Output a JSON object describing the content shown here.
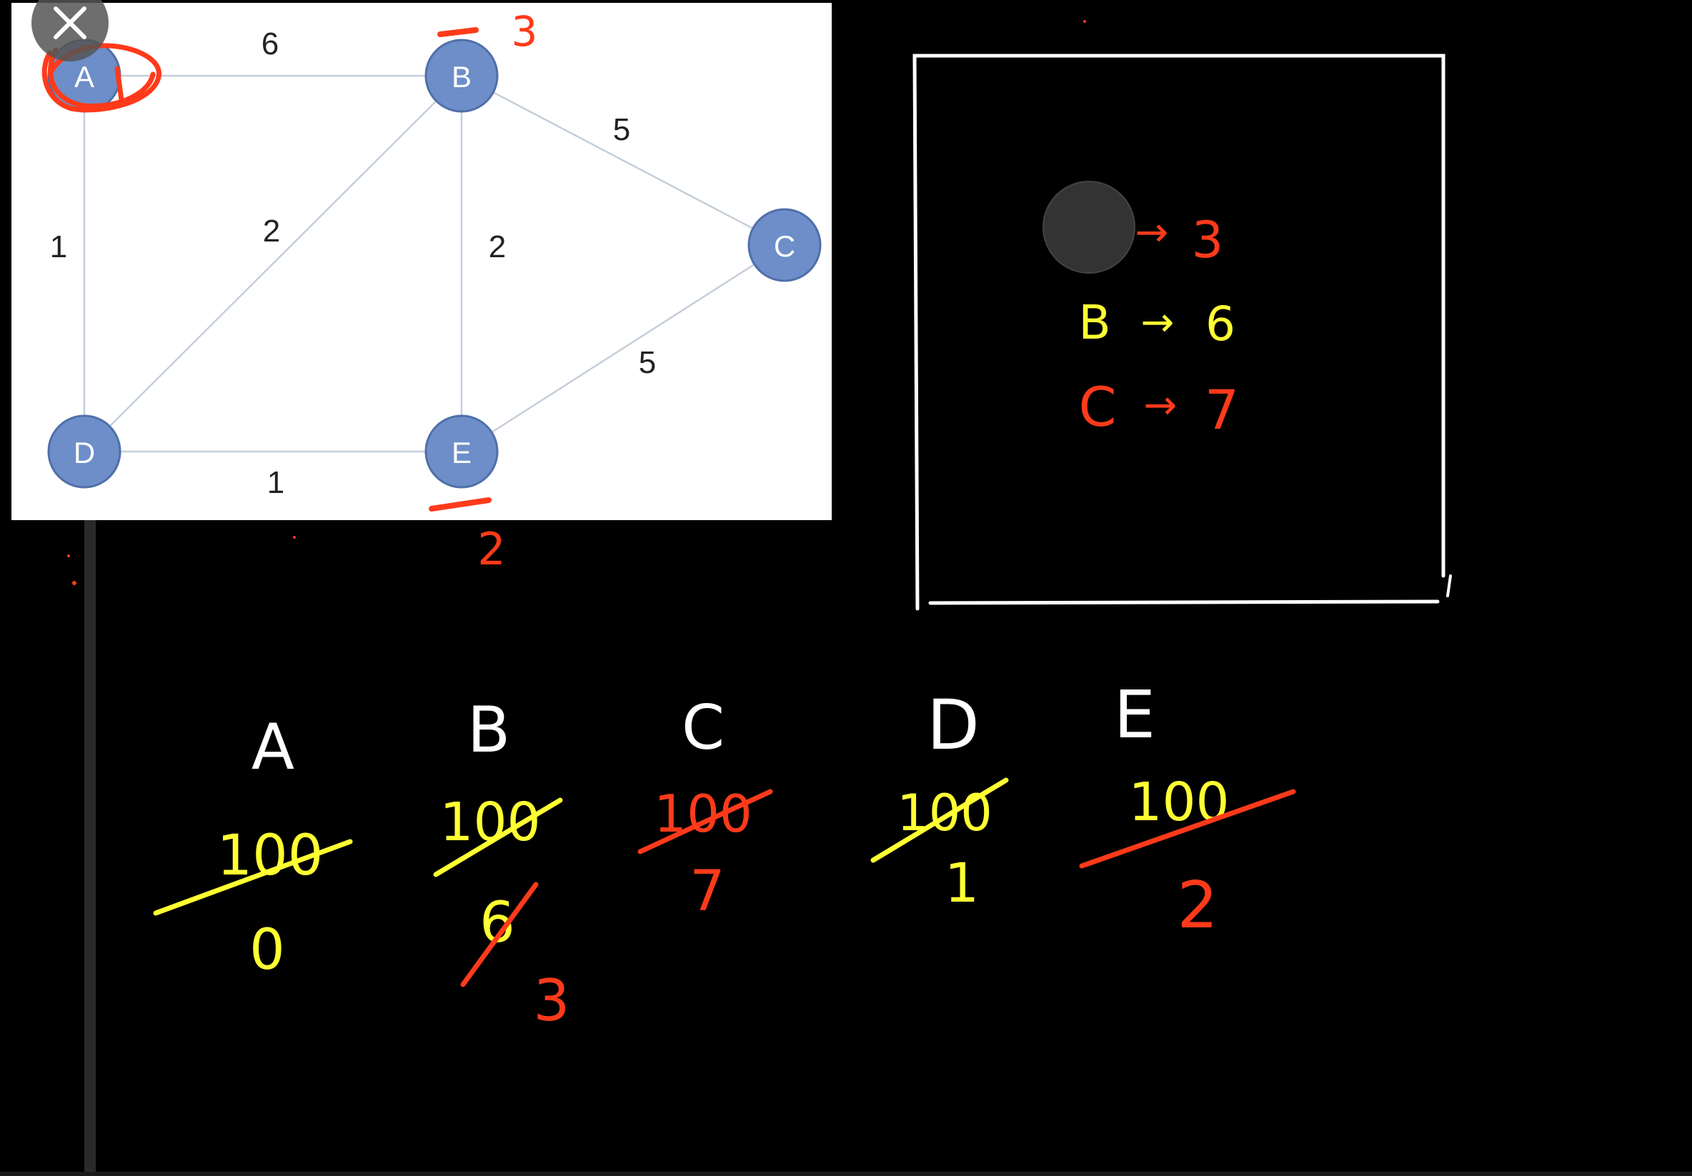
{
  "close_button": {
    "icon": "close-icon"
  },
  "graph": {
    "nodes": [
      {
        "id": "A",
        "label": "A"
      },
      {
        "id": "B",
        "label": "B"
      },
      {
        "id": "C",
        "label": "C"
      },
      {
        "id": "D",
        "label": "D"
      },
      {
        "id": "E",
        "label": "E"
      }
    ],
    "edges": [
      {
        "from": "A",
        "to": "B",
        "weight": "6"
      },
      {
        "from": "A",
        "to": "D",
        "weight": "1"
      },
      {
        "from": "B",
        "to": "D",
        "weight": "2"
      },
      {
        "from": "B",
        "to": "E",
        "weight": "2"
      },
      {
        "from": "B",
        "to": "C",
        "weight": "5"
      },
      {
        "from": "D",
        "to": "E",
        "weight": "1"
      },
      {
        "from": "E",
        "to": "C",
        "weight": "5"
      }
    ],
    "annotations": {
      "b_note": "3",
      "e_note": "2"
    }
  },
  "queue_box": {
    "rows": [
      {
        "node": "",
        "arrow": "→",
        "value": "3",
        "color": "#ff3a1a"
      },
      {
        "node": "B",
        "arrow": "→",
        "value": "6",
        "color": "#ffff33"
      },
      {
        "node": "C",
        "arrow": "→",
        "value": "7",
        "color": "#ff3a1a"
      }
    ]
  },
  "distance_table": {
    "columns": [
      {
        "node": "A",
        "initial": "100",
        "values": [
          "0"
        ]
      },
      {
        "node": "B",
        "initial": "100",
        "values": [
          "6",
          "3"
        ]
      },
      {
        "node": "C",
        "initial": "100",
        "values": [
          "7"
        ]
      },
      {
        "node": "D",
        "initial": "100",
        "values": [
          "1"
        ]
      },
      {
        "node": "E",
        "initial": "100",
        "values": [
          "2"
        ]
      }
    ]
  },
  "colors": {
    "node_fill": "#6d8ec8",
    "node_stroke": "#4f6fa8",
    "edge": "#c5cedb",
    "red_ink": "#ff3a1a",
    "yellow_ink": "#ffff33",
    "white_ink": "#ffffff",
    "panel_bg": "#ffffff"
  }
}
